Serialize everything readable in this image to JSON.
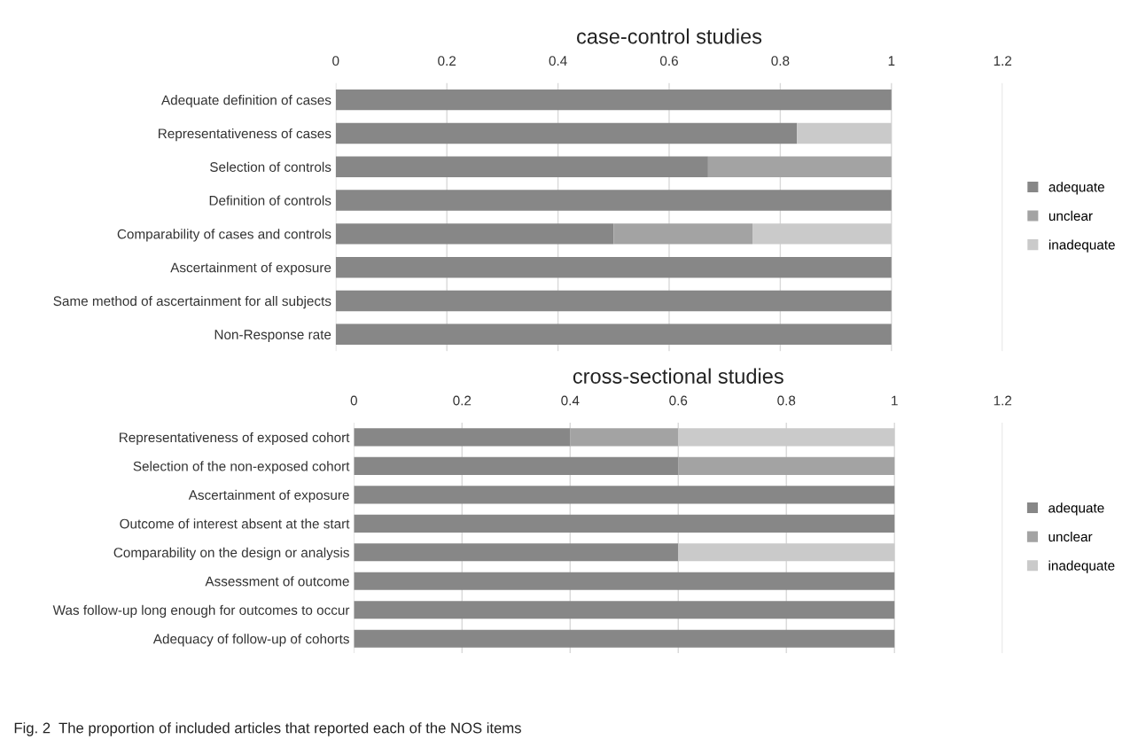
{
  "chart_data": [
    {
      "type": "bar",
      "orientation": "horizontal",
      "stacked": true,
      "title": "case-control studies",
      "categories": [
        "Adequate definition of cases",
        "Representativeness of cases",
        "Selection of controls",
        "Definition of controls",
        "Comparability of cases and controls",
        "Ascertainment of exposure",
        "Same method of ascertainment for all subjects",
        "Non-Response rate"
      ],
      "series": [
        {
          "name": "adequate",
          "color": "#878787",
          "values": [
            1,
            0.83,
            0.67,
            1,
            0.5,
            1,
            1,
            1
          ]
        },
        {
          "name": "unclear",
          "color": "#a3a3a3",
          "values": [
            0,
            0,
            0.33,
            0,
            0.25,
            0,
            0,
            0
          ]
        },
        {
          "name": "inadequate",
          "color": "#cacaca",
          "values": [
            0,
            0.17,
            0,
            0,
            0.25,
            0,
            0,
            0
          ]
        }
      ],
      "xlim": [
        0,
        1.2
      ],
      "xticks": [
        0,
        0.2,
        0.4,
        0.6,
        0.8,
        1,
        1.2
      ],
      "grid": "x",
      "legend": "right"
    },
    {
      "type": "bar",
      "orientation": "horizontal",
      "stacked": true,
      "title": "cross-sectional studies",
      "categories": [
        "Representativeness of exposed cohort",
        "Selection of the non-exposed cohort",
        "Ascertainment of exposure",
        "Outcome of interest absent at the start",
        "Comparability on the design or analysis",
        "Assessment of outcome",
        "Was follow-up long enough for outcomes to occur",
        "Adequacy of follow-up of cohorts"
      ],
      "series": [
        {
          "name": "adequate",
          "color": "#878787",
          "values": [
            0.4,
            0.6,
            1,
            1,
            0.6,
            1,
            1,
            1
          ]
        },
        {
          "name": "unclear",
          "color": "#a3a3a3",
          "values": [
            0.2,
            0.4,
            0,
            0,
            0,
            0,
            0,
            0
          ]
        },
        {
          "name": "inadequate",
          "color": "#cacaca",
          "values": [
            0.4,
            0,
            0,
            0,
            0.4,
            0,
            0,
            0
          ]
        }
      ],
      "xlim": [
        0,
        1.2
      ],
      "xticks": [
        0,
        0.2,
        0.4,
        0.6,
        0.8,
        1,
        1.2
      ],
      "grid": "x",
      "legend": "right",
      "annotations": [
        "Fig. 2  The proportion of included articles that reported each of the NOS items"
      ]
    }
  ]
}
